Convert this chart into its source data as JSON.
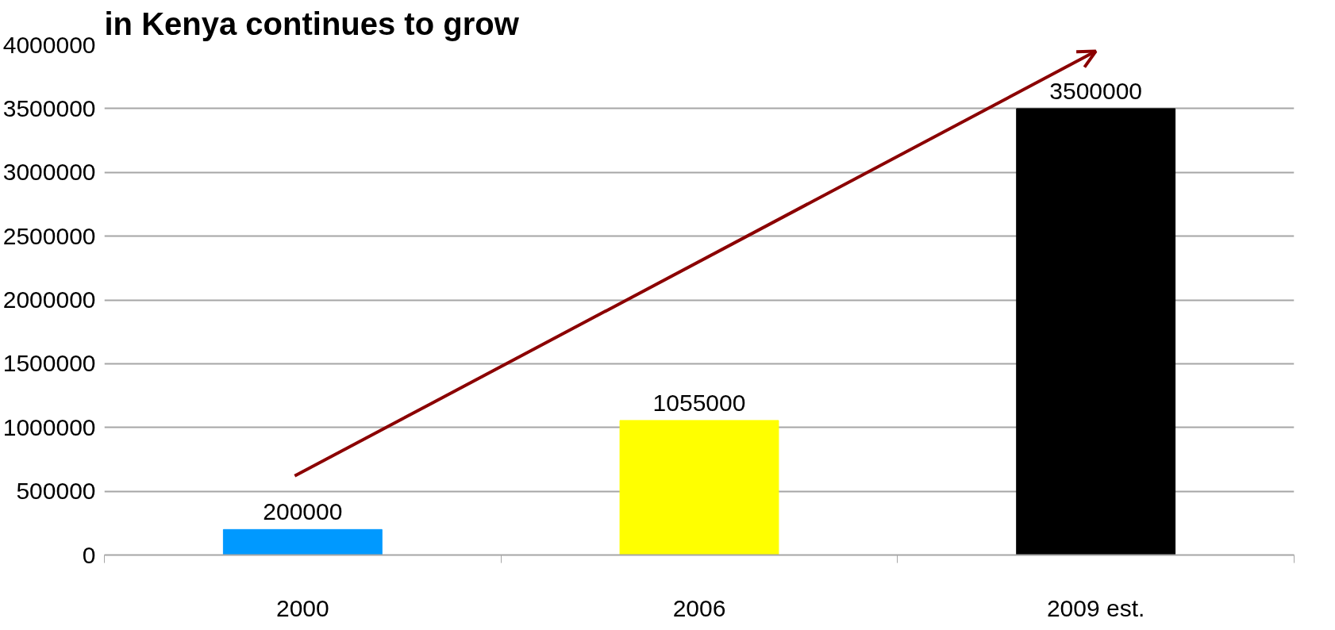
{
  "chart_data": {
    "type": "bar",
    "title": "in Kenya continues to grow",
    "categories": [
      "2000",
      "2006",
      "2009 est."
    ],
    "values": [
      200000,
      1055000,
      3500000
    ],
    "colors": [
      "#0099ff",
      "#ffff00",
      "#000000"
    ],
    "ylim": [
      0,
      4000000
    ],
    "yticks": [
      0,
      500000,
      1000000,
      1500000,
      2000000,
      2500000,
      3000000,
      3500000,
      4000000
    ],
    "grid": "y",
    "data_labels": true
  }
}
